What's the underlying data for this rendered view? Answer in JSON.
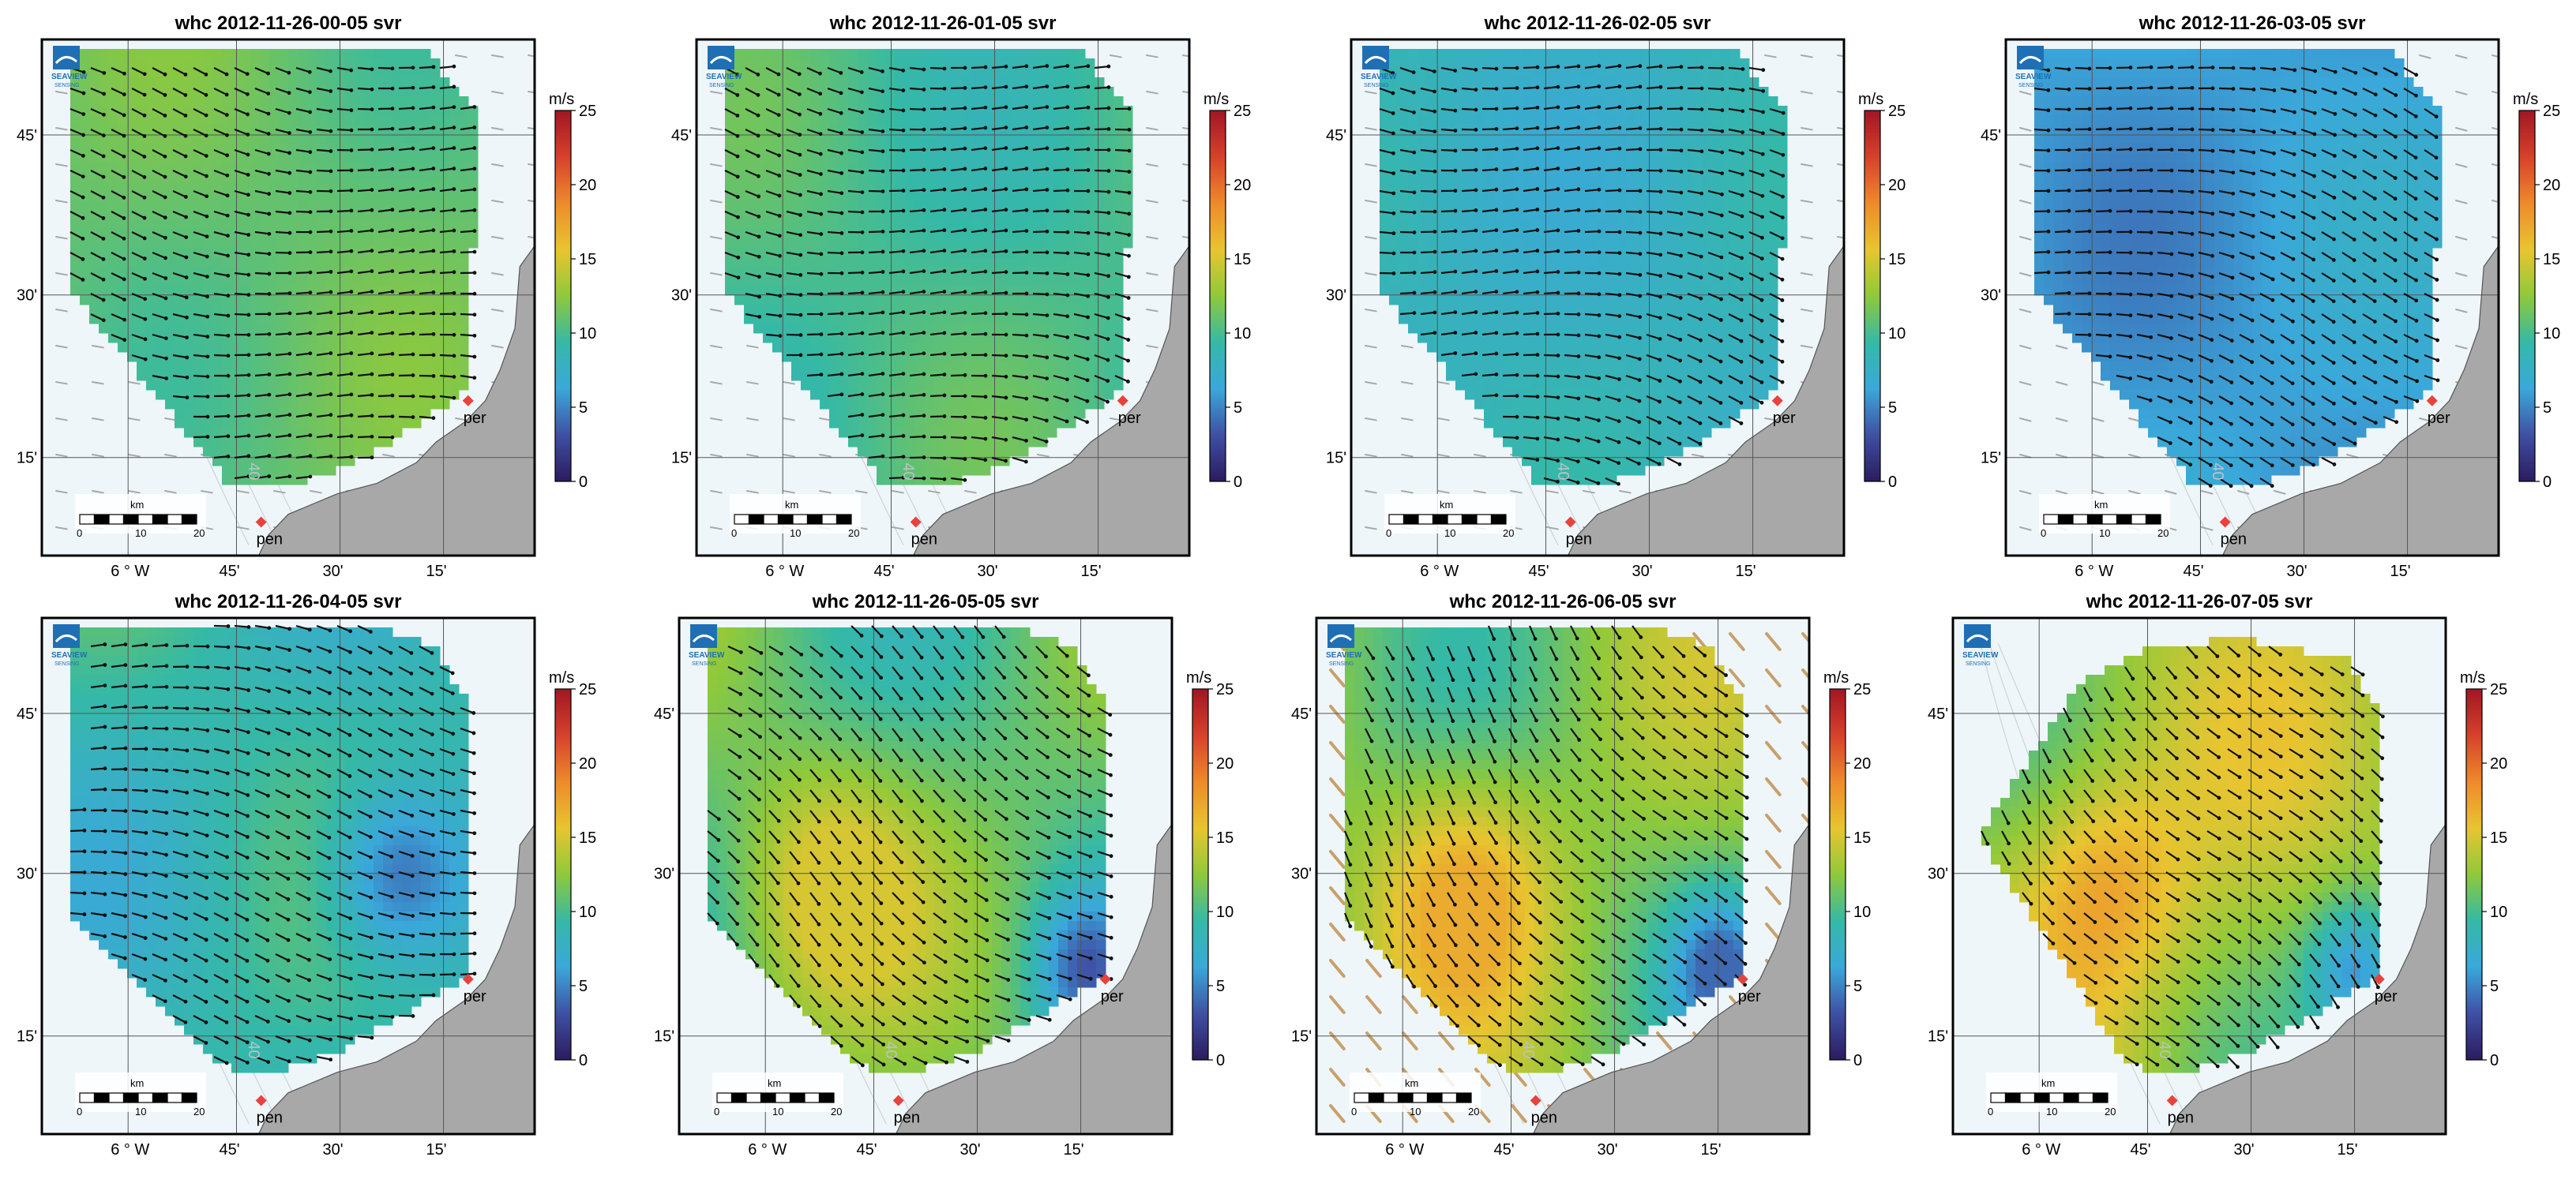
{
  "figure": {
    "background": "#ffffff",
    "land_color": "#a8a8a8",
    "sea_color": "#eef6fa",
    "vector_color": "#111111",
    "model_vector_color": "#a8a8a8",
    "model_vector_color_strong": "#c9a06a",
    "site_marker_color": "#e8423c"
  },
  "logo": {
    "name": "SEAVIEW",
    "sub": "SENSING"
  },
  "colorbar": {
    "unit": "m/s",
    "ticks": [
      "25",
      "20",
      "15",
      "10",
      "5",
      "0"
    ],
    "stops": [
      "#2b1b5f",
      "#3f50a4",
      "#3aa8da",
      "#35b9a6",
      "#8fc93a",
      "#e8c530",
      "#ee8a2b",
      "#d6412b",
      "#a11624"
    ]
  },
  "axes": {
    "lat_ticks": [
      "45'",
      "30'",
      "15'"
    ],
    "lon_ticks": [
      "6 ° W",
      "45'",
      "30'",
      "15'"
    ]
  },
  "scalebar": {
    "unit": "km",
    "labels": [
      "0",
      "10",
      "20"
    ]
  },
  "sites": {
    "north": "per",
    "south": "pen"
  },
  "depth_label": "40",
  "chart_data": [
    {
      "type": "heatmap",
      "title": "whc 2012-11-26-00-05 svr",
      "zlabel": "m/s",
      "zlim": [
        0,
        25
      ],
      "mean_speed": 11,
      "speed_range": [
        7,
        13
      ],
      "direction_deg": 100,
      "model_vectors": 1,
      "slow_core": null
    },
    {
      "type": "heatmap",
      "title": "whc 2012-11-26-01-05 svr",
      "zlabel": "m/s",
      "zlim": [
        0,
        25
      ],
      "mean_speed": 10,
      "speed_range": [
        6,
        13
      ],
      "direction_deg": 100,
      "model_vectors": 1,
      "slow_core": null
    },
    {
      "type": "heatmap",
      "title": "whc 2012-11-26-02-05 svr",
      "zlabel": "m/s",
      "zlim": [
        0,
        25
      ],
      "mean_speed": 8,
      "speed_range": [
        5,
        11
      ],
      "direction_deg": 100,
      "model_vectors": 1,
      "slow_core": null
    },
    {
      "type": "heatmap",
      "title": "whc 2012-11-26-03-05 svr",
      "zlabel": "m/s",
      "zlim": [
        0,
        25
      ],
      "mean_speed": 6,
      "speed_range": [
        3,
        10
      ],
      "direction_deg": 105,
      "model_vectors": 1,
      "slow_core": null
    },
    {
      "type": "heatmap",
      "title": "whc 2012-11-26-04-05 svr",
      "zlabel": "m/s",
      "zlim": [
        0,
        25
      ],
      "mean_speed": 9,
      "speed_range": [
        2,
        13
      ],
      "direction_deg": 100,
      "model_vectors": 0,
      "slow_core": "east"
    },
    {
      "type": "heatmap",
      "title": "whc 2012-11-26-05-05 svr",
      "zlabel": "m/s",
      "zlim": [
        0,
        25
      ],
      "mean_speed": 11,
      "speed_range": [
        3,
        15
      ],
      "direction_deg": 125,
      "model_vectors": 0,
      "slow_core": "southeast"
    },
    {
      "type": "heatmap",
      "title": "whc 2012-11-26-06-05 svr",
      "zlabel": "m/s",
      "zlim": [
        0,
        25
      ],
      "mean_speed": 12,
      "speed_range": [
        4,
        17
      ],
      "direction_deg": 140,
      "model_vectors": 2,
      "slow_core": "southeast"
    },
    {
      "type": "heatmap",
      "title": "whc 2012-11-26-07-05 svr",
      "zlabel": "m/s",
      "zlim": [
        0,
        25
      ],
      "mean_speed": 13,
      "speed_range": [
        5,
        18
      ],
      "direction_deg": 140,
      "model_vectors": 0,
      "slow_core": "southeast"
    }
  ]
}
